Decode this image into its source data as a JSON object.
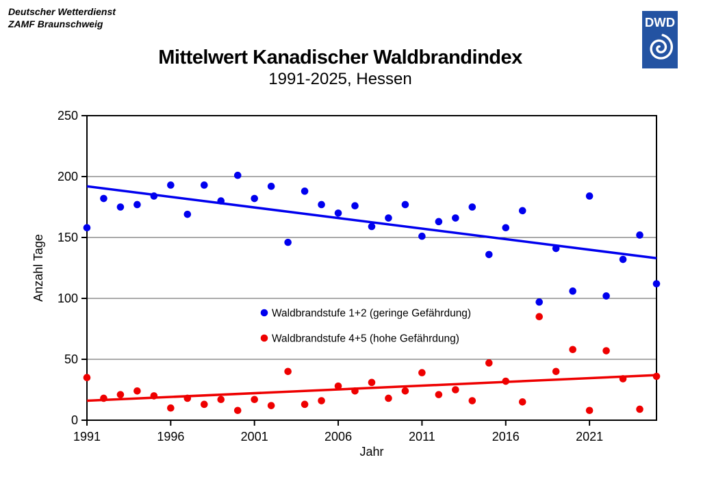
{
  "header": {
    "org_line1": "Deutscher Wetterdienst",
    "org_line2": "ZAMF Braunschweig"
  },
  "logo": {
    "text": "DWD",
    "background_color": "#2353a2",
    "spiral_color": "#ffffff"
  },
  "chart_data": {
    "type": "scatter",
    "title": "Mittelwert Kanadischer Waldbrandindex",
    "subtitle": "1991-2025, Hessen",
    "xlabel": "Jahr",
    "ylabel": "Anzahl Tage",
    "xlim": [
      1991,
      2025
    ],
    "ylim": [
      0,
      250
    ],
    "x_ticks": [
      1991,
      1996,
      2001,
      2006,
      2011,
      2016,
      2021
    ],
    "y_ticks": [
      0,
      50,
      100,
      150,
      200,
      250
    ],
    "grid": "horizontal gridlines at 50,100,150,200",
    "legend_position": "inside center-left",
    "axis_color": "#000000",
    "gridline_color": "#555555",
    "years": [
      1991,
      1992,
      1993,
      1994,
      1995,
      1996,
      1997,
      1998,
      1999,
      2000,
      2001,
      2002,
      2003,
      2004,
      2005,
      2006,
      2007,
      2008,
      2009,
      2010,
      2011,
      2012,
      2013,
      2014,
      2015,
      2016,
      2017,
      2018,
      2019,
      2020,
      2021,
      2022,
      2023,
      2024,
      2025
    ],
    "series": [
      {
        "name": "Waldbrandstufe 1+2 (geringe Gefährdung)",
        "color": "#0000ee",
        "values": [
          158,
          182,
          175,
          177,
          184,
          193,
          169,
          193,
          180,
          201,
          182,
          192,
          146,
          188,
          177,
          170,
          176,
          159,
          166,
          177,
          151,
          163,
          166,
          175,
          136,
          158,
          172,
          97,
          141,
          106,
          184,
          102,
          132,
          152,
          112
        ],
        "trend": {
          "start_year": 1991,
          "start_value": 192,
          "end_year": 2025,
          "end_value": 133
        }
      },
      {
        "name": "Waldbrandstufe 4+5 (hohe Gefährdung)",
        "color": "#ee0000",
        "values": [
          35,
          18,
          21,
          24,
          20,
          10,
          18,
          13,
          17,
          8,
          17,
          12,
          40,
          13,
          16,
          28,
          24,
          31,
          18,
          24,
          39,
          21,
          25,
          16,
          47,
          32,
          15,
          85,
          40,
          58,
          8,
          57,
          34,
          9,
          36
        ],
        "trend": {
          "start_year": 1991,
          "start_value": 16,
          "end_year": 2025,
          "end_value": 37
        }
      }
    ]
  }
}
